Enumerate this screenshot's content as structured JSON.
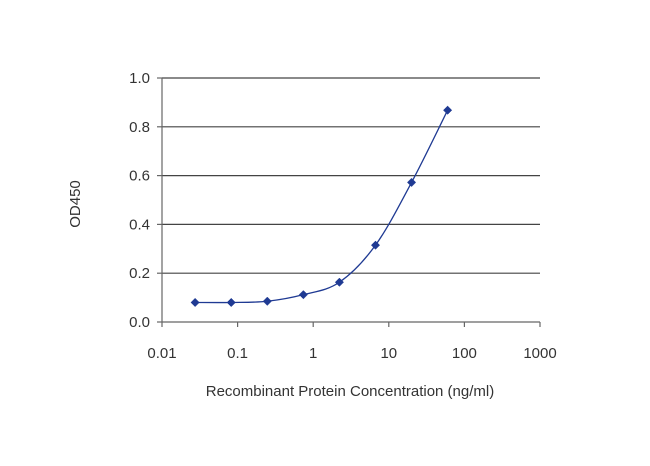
{
  "chart_data": {
    "type": "line",
    "title": "",
    "xlabel": "Recombinant Protein Concentration (ng/ml)",
    "ylabel": "OD450",
    "x_scale": "log",
    "xlim": [
      0.01,
      1000
    ],
    "ylim": [
      0.0,
      1.0
    ],
    "x_ticks": [
      "0.01",
      "0.1",
      "1",
      "10",
      "100",
      "1000"
    ],
    "y_ticks": [
      "0.0",
      "0.2",
      "0.4",
      "0.6",
      "0.8",
      "1.0"
    ],
    "grid": "horizontal",
    "series": [
      {
        "x": [
          0.0274,
          0.0823,
          0.247,
          0.741,
          2.22,
          6.67,
          20.0,
          60.0
        ],
        "y": [
          0.08,
          0.08,
          0.085,
          0.112,
          0.163,
          0.315,
          0.572,
          0.868
        ],
        "color": "#1f3a93",
        "marker": "diamond"
      }
    ]
  }
}
